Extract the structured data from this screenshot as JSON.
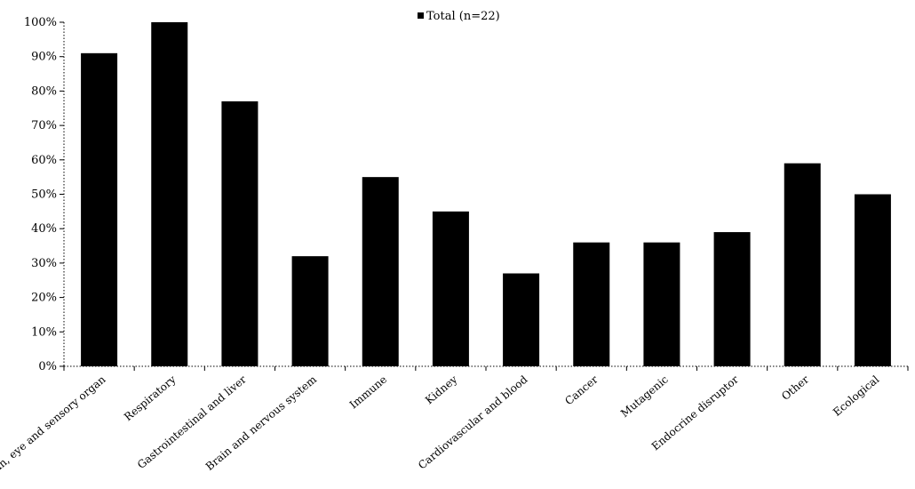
{
  "chart_data": {
    "type": "bar",
    "categories": [
      "Skin, eye and sensory organ",
      "Respiratory",
      "Gastrointestinal and liver",
      "Brain and nervous system",
      "Immune",
      "Kidney",
      "Cardiovascular and blood",
      "Cancer",
      "Mutagenic",
      "Endocrine disruptor",
      "Other",
      "Ecological"
    ],
    "series": [
      {
        "name": "Total (n=22)",
        "values": [
          91,
          100,
          77,
          32,
          55,
          45,
          27,
          36,
          36,
          39,
          59,
          50
        ]
      }
    ],
    "yticks": [
      "0%",
      "10%",
      "20%",
      "30%",
      "40%",
      "50%",
      "60%",
      "70%",
      "80%",
      "90%",
      "100%"
    ],
    "ylim": [
      0,
      100
    ],
    "legend_position": "top-center",
    "grid": false,
    "colors": {
      "bar": "#000000",
      "axis": "#000000"
    }
  }
}
